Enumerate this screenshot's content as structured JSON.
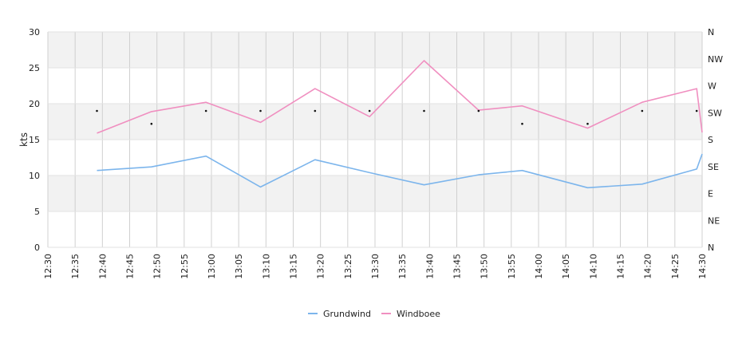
{
  "chart_data": {
    "type": "line",
    "ylabel": "kts",
    "ylim": [
      0,
      30
    ],
    "y_ticks": [
      0,
      5,
      10,
      15,
      20,
      25,
      30
    ],
    "x_ticks": [
      "12:30",
      "12:35",
      "12:40",
      "12:45",
      "12:50",
      "12:55",
      "13:00",
      "13:05",
      "13:10",
      "13:15",
      "13:20",
      "13:25",
      "13:30",
      "13:35",
      "13:40",
      "13:45",
      "13:50",
      "13:55",
      "14:00",
      "14:05",
      "14:10",
      "14:15",
      "14:20",
      "14:25",
      "14:30"
    ],
    "x_range": [
      "12:30",
      "14:30"
    ],
    "right_axis_labels": [
      "N",
      "NE",
      "E",
      "SE",
      "S",
      "SW",
      "W",
      "NW",
      "N"
    ],
    "grid": true,
    "legend_position": "bottom",
    "series": [
      {
        "name": "Grundwind",
        "color": "#7cb5ec",
        "x": [
          "12:39",
          "12:49",
          "12:59",
          "13:09",
          "13:19",
          "13:29",
          "13:39",
          "13:49",
          "13:57",
          "14:09",
          "14:19",
          "14:29",
          "14:30"
        ],
        "values": [
          10.7,
          11.2,
          12.7,
          8.4,
          12.2,
          10.4,
          8.7,
          10.1,
          10.7,
          8.3,
          8.8,
          10.9,
          13.0
        ]
      },
      {
        "name": "Windboee",
        "color": "#f08fc0",
        "x": [
          "12:39",
          "12:49",
          "12:59",
          "13:09",
          "13:19",
          "13:29",
          "13:39",
          "13:49",
          "13:57",
          "14:09",
          "14:19",
          "14:29",
          "14:30"
        ],
        "values": [
          15.9,
          18.9,
          20.2,
          17.4,
          22.1,
          18.2,
          26.0,
          19.1,
          19.7,
          16.6,
          20.2,
          22.1,
          16.0
        ]
      }
    ],
    "direction_points": {
      "x": [
        "12:39",
        "12:49",
        "12:59",
        "13:09",
        "13:19",
        "13:29",
        "13:39",
        "13:49",
        "13:57",
        "14:09",
        "14:19",
        "14:29"
      ],
      "values": [
        19.0,
        17.2,
        19.0,
        19.0,
        19.0,
        19.0,
        19.0,
        19.0,
        17.2,
        17.2,
        19.0,
        19.0
      ],
      "color": "#111111"
    }
  }
}
